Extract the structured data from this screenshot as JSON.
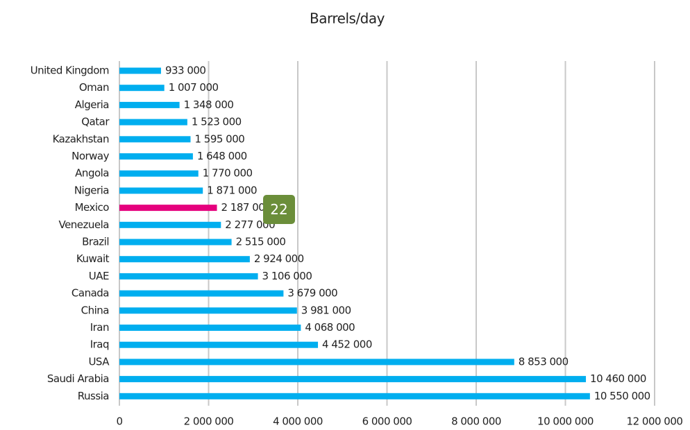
{
  "chart_data": {
    "type": "hbar",
    "title": "Barrels/day",
    "categories": [
      "United Kingdom",
      "Oman",
      "Algeria",
      "Qatar",
      "Kazakhstan",
      "Norway",
      "Angola",
      "Nigeria",
      "Mexico",
      "Venezuela",
      "Brazil",
      "Kuwait",
      "UAE",
      "Canada",
      "China",
      "Iran",
      "Iraq",
      "USA",
      "Saudi Arabia",
      "Russia"
    ],
    "values": [
      933000,
      1007000,
      1348000,
      1523000,
      1595000,
      1648000,
      1770000,
      1871000,
      2187000,
      2277000,
      2515000,
      2924000,
      3106000,
      3679000,
      3981000,
      4068000,
      4452000,
      8853000,
      10460000,
      10550000
    ],
    "value_labels": [
      "933 000",
      "1 007 000",
      "1 348 000",
      "1 523 000",
      "1 595 000",
      "1 648 000",
      "1 770 000",
      "1 871 000",
      "2 187 000",
      "2 277 000",
      "2 515 000",
      "2 924 000",
      "3 106 000",
      "3 679 000",
      "3 981 000",
      "4 068 000",
      "4 452 000",
      "8 853 000",
      "10 460 000",
      "10 550 000"
    ],
    "colors": [
      "#00aeef",
      "#00aeef",
      "#00aeef",
      "#00aeef",
      "#00aeef",
      "#00aeef",
      "#00aeef",
      "#00aeef",
      "#e5007d",
      "#00aeef",
      "#00aeef",
      "#00aeef",
      "#00aeef",
      "#00aeef",
      "#00aeef",
      "#00aeef",
      "#00aeef",
      "#00aeef",
      "#00aeef",
      "#00aeef"
    ],
    "xlim": [
      0,
      12000000
    ],
    "xticks": [
      0,
      {
        "value": 2000000,
        "label": "2 000 000"
      },
      {
        "value": 4000000,
        "label": "4 000 000"
      },
      {
        "value": 6000000,
        "label": "6 000 000"
      },
      {
        "value": 8000000,
        "label": "8 000 000"
      },
      {
        "value": 10000000,
        "label": "10 000 000"
      },
      {
        "value": 12000000,
        "label": "12 000 000"
      }
    ],
    "grid": true,
    "annotation": "22"
  }
}
